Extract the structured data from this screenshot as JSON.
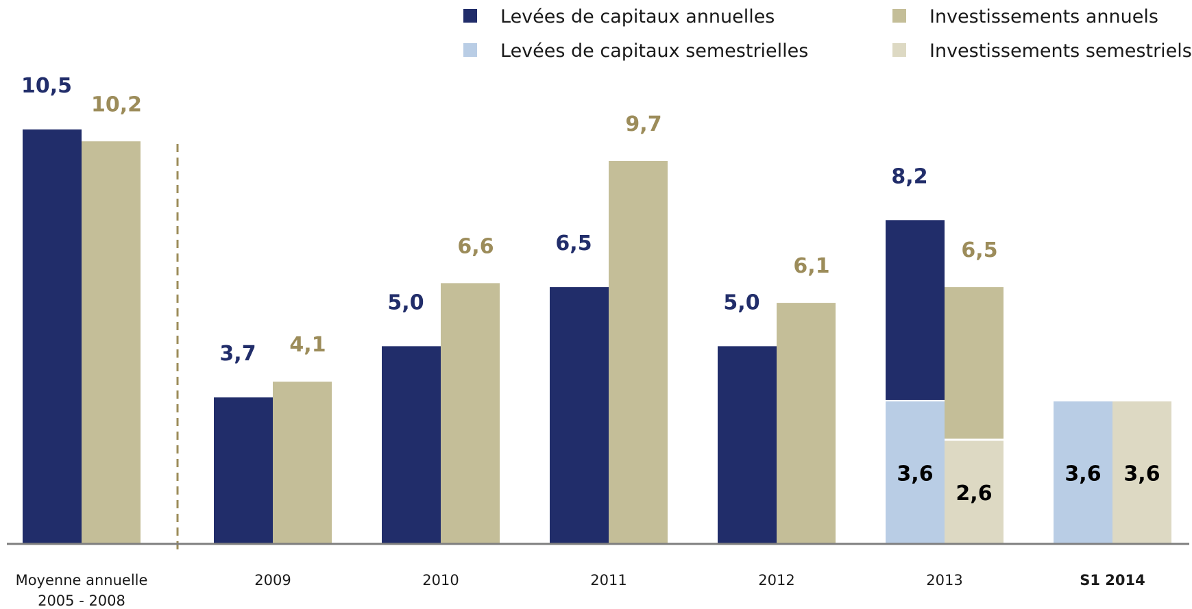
{
  "chart_data": {
    "type": "bar",
    "title": "",
    "xlabel": "",
    "ylabel": "",
    "ylim": [
      0,
      11
    ],
    "grid": false,
    "legend": {
      "placement": "top-right",
      "entries": [
        {
          "label": "Levées de capitaux annuelles",
          "color": "#212d6a"
        },
        {
          "label": "Investissements annuels",
          "color": "#c4be98"
        },
        {
          "label": "Levées de capitaux semestrielles",
          "color": "#b9cde5"
        },
        {
          "label": "Investissements semestriels",
          "color": "#ddd9c3"
        }
      ]
    },
    "categories": [
      {
        "line1": "Moyenne annuelle",
        "line2": "2005 - 2008",
        "bold": false
      },
      {
        "line1": "2009",
        "line2": "",
        "bold": false
      },
      {
        "line1": "2010",
        "line2": "",
        "bold": false
      },
      {
        "line1": "2011",
        "line2": "",
        "bold": false
      },
      {
        "line1": "2012",
        "line2": "",
        "bold": false
      },
      {
        "line1": "2013",
        "line2": "",
        "bold": false
      },
      {
        "line1": "S1 2014",
        "line2": "",
        "bold": true
      }
    ],
    "series": [
      {
        "values": [
          10.5,
          3.7,
          5.0,
          6.5,
          5.0,
          8.2,
          null
        ],
        "labels": [
          "10,5",
          "3,7",
          "5,0",
          "6,5",
          "5,0",
          "8,2",
          ""
        ]
      },
      {
        "values": [
          10.2,
          4.1,
          6.6,
          9.7,
          6.1,
          6.5,
          null
        ],
        "labels": [
          "10,2",
          "4,1",
          "6,6",
          "9,7",
          "6,1",
          "6,5",
          ""
        ]
      },
      {
        "values": [
          null,
          null,
          null,
          null,
          null,
          3.6,
          3.6
        ],
        "labels": [
          "",
          "",
          "",
          "",
          "",
          "3,6",
          "3,6"
        ]
      },
      {
        "values": [
          null,
          null,
          null,
          null,
          null,
          2.6,
          3.6
        ],
        "labels": [
          "",
          "",
          "",
          "",
          "",
          "2,6",
          "3,6"
        ]
      }
    ],
    "label_colors": {
      "capitaux_annuels": "#212d6a",
      "investissements_annuels": "#9c8c5a",
      "semestriels": "#000000"
    },
    "colors": {
      "separator": "#9c8c5a",
      "axis": "#7f7f7f"
    }
  }
}
